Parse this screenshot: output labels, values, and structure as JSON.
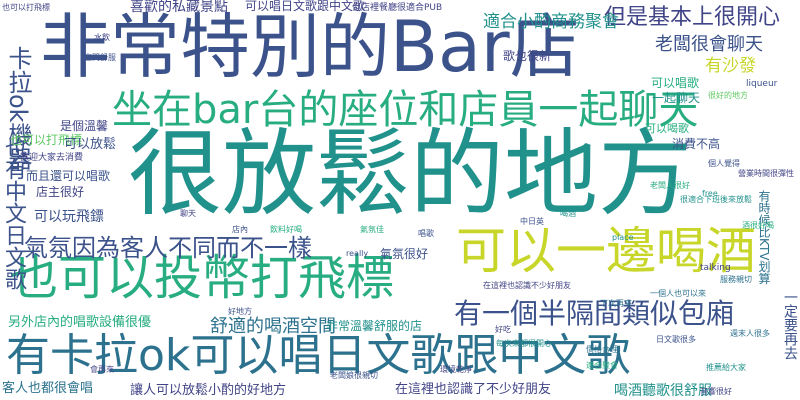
{
  "palette": {
    "navy": "#3b528b",
    "indigo": "#414487",
    "purple": "#482878",
    "blue": "#2c728e",
    "teal": "#21918c",
    "green": "#27ad81",
    "lightgreen": "#5ec962",
    "yellowgreen": "#aadc32",
    "yellow": "#c8d62a",
    "background": "#ffffff"
  },
  "words": {
    "w01": "非常特別的Bar店",
    "w02": "很放鬆的地方",
    "w03": "坐在bar台的座位和店員一起聊天",
    "w04": "也可以投幣打飛標",
    "w05": "有卡拉ok可以唱日文歌跟中文歌",
    "w06": "可以一邊喝酒",
    "w07": "氣氛因為客人不同而不一樣",
    "w08": "有一個半隔間類似包廂",
    "w09": "也有中文日文歌",
    "w10": "卡拉ok機器",
    "w11": "但是基本上很開心",
    "w12": "適合小酌商務聚會",
    "w13": "老闆很會聊天",
    "w14": "有沙發",
    "w15": "可以唱歌",
    "w16": "喜歡的私藏景點",
    "w17": "可以唱日文歌跟中文歌",
    "w18": "舒適的喝酒空間",
    "w19": "另外店內的唱歌設備很優",
    "w20": "客人也都很會唱",
    "w21": "讓人可以放鬆小酌的好地方",
    "w22": "在這裡也認識了不少好朋友",
    "w23": "喝酒聽歌很舒服",
    "w24": "可以玩飛鏢",
    "w25": "非常溫馨舒服的店",
    "w26": "也可以打飛標",
    "w27": "是個溫馨",
    "w28": "可以放鬆",
    "w29": "而且還可以唱歌",
    "w30": "店主很好",
    "w31": "氣氛很好",
    "w32": "消費不高",
    "w33": "一起聊天",
    "w34": "歌也很新",
    "w35": "可以喝歌",
    "w36": "有時候比KTV划算",
    "w37": "一定要再去",
    "w38": "歡迎大家去消費",
    "w39": "talking",
    "w40": "liqueur",
    "w41": "free",
    "w42": "place",
    "w43": "really",
    "w44": "服務親切",
    "w45": "中日英",
    "w46": "很好的地方",
    "w47": "個人覺得",
    "w48": "水飲",
    "w49": "但店裡餐廳很適合PUB",
    "w50": "老闆人很好",
    "w51": "空間舒服",
    "w52": "好吃",
    "w53": "也可以打飛標",
    "w54": "聊天",
    "w55": "店內",
    "w56": "氣氛佳",
    "w57": "營業時間很彈性",
    "w58": "喝酒",
    "w59": "唱歌",
    "w60": "在這裡也認識不少好朋友",
    "w61": "很適合下班後來放鬆",
    "w62": "一個人也可以來",
    "w63": "飲料好喝",
    "w64": "每次來都很開心",
    "w65": "價格合理",
    "w66": "日文歌很多",
    "w67": "推薦給大家",
    "w68": "老闆娘很親切",
    "w69": "環境乾淨",
    "w70": "適合聚會",
    "w71": "週末人很多",
    "w72": "會再來",
    "w73": "好地方",
    "w74": "酒很好喝",
    "w75": "下次再來",
    "w76": "音響很好"
  }
}
